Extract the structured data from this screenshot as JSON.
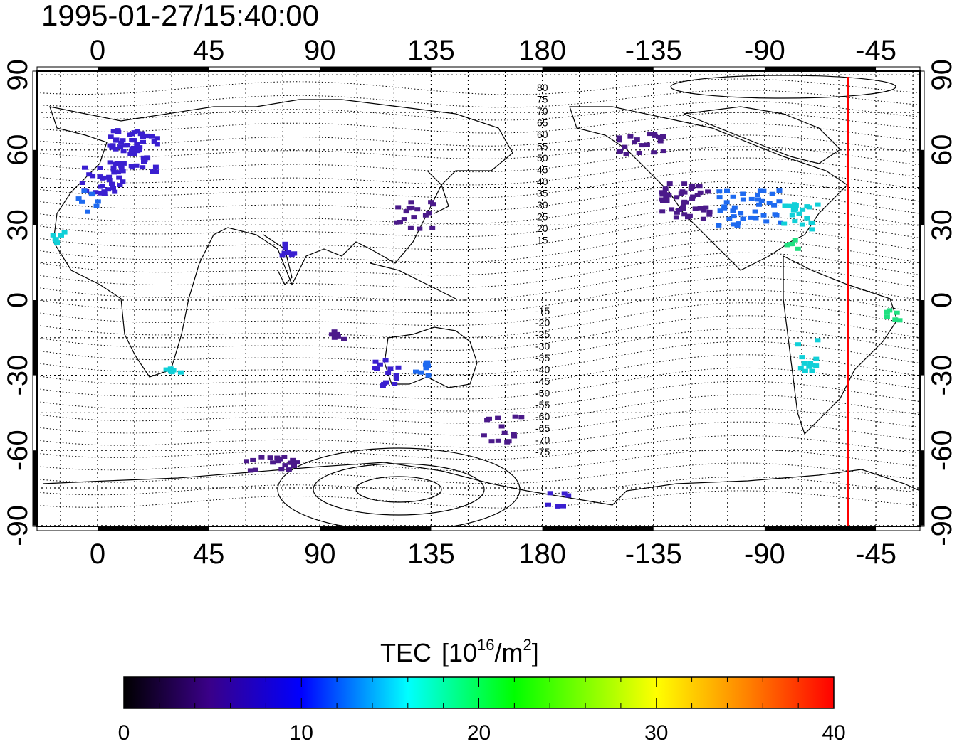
{
  "map": {
    "timestamp": "1995-01-27/15:40:00",
    "x_ticks": [
      "0",
      "45",
      "90",
      "135",
      "180",
      "-135",
      "-90",
      "-45"
    ],
    "y_ticks_left": [
      "90",
      "60",
      "30",
      "0",
      "-30",
      "-60",
      "-90"
    ],
    "y_ticks_right": [
      "90",
      "60",
      "30",
      "0",
      "-30",
      "-60",
      "-90"
    ],
    "contour_labels_north": [
      "80",
      "75",
      "70",
      "65",
      "60",
      "55",
      "50",
      "45",
      "40",
      "35",
      "30",
      "25",
      "20",
      "15"
    ],
    "contour_labels_south": [
      "-15",
      "-20",
      "-25",
      "-30",
      "-35",
      "-40",
      "-45",
      "-50",
      "-55",
      "-60",
      "-65",
      "-70",
      "-75"
    ],
    "marker_line_color": "#ff0000"
  },
  "colorbar": {
    "title": "TEC",
    "unit_open": "[10",
    "unit_sup1": "16",
    "unit_mid": "/m",
    "unit_sup2": "2",
    "unit_close": "]",
    "ticks": [
      "0",
      "10",
      "20",
      "30",
      "40"
    ],
    "colors": [
      "#000000",
      "#3a0088",
      "#0000ff",
      "#00ffff",
      "#00ff00",
      "#ffff00",
      "#ff0000"
    ]
  },
  "tec_blocks_legend": {
    "low": "#4b1a8a",
    "mid_low": "#3a1fd0",
    "mid": "#1e6af0",
    "mid_high": "#10d0d8",
    "high": "#20e080"
  }
}
